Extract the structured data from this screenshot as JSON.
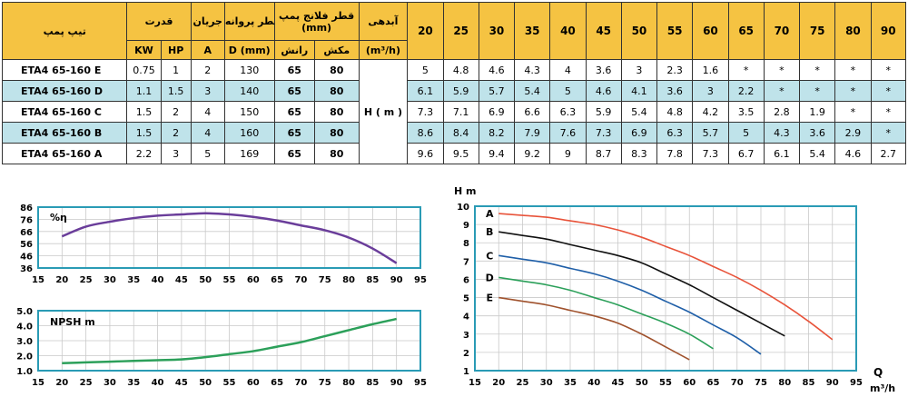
{
  "table": {
    "header": {
      "model": "تیپ پمپ",
      "power": "قدرت",
      "current": "جریان",
      "impeller": "قطر پروانه",
      "flange": "قطر فلانج پمپ (mm)",
      "flow": "آبدهی",
      "flow_unit": "(m³/h)",
      "kw": "KW",
      "hp": "HP",
      "amp": "A",
      "dmm": "D (mm)",
      "outlet": "رانش",
      "inlet": "مکش",
      "flows": [
        "20",
        "25",
        "30",
        "35",
        "40",
        "45",
        "50",
        "55",
        "60",
        "65",
        "70",
        "75",
        "80",
        "90"
      ]
    },
    "head_label": "H ( m )",
    "rows": [
      {
        "model": "ETA4 65-160 E",
        "kw": "0.75",
        "hp": "1",
        "a": "2",
        "d": "130",
        "out": "65",
        "in": "80",
        "h": [
          "5",
          "4.8",
          "4.6",
          "4.3",
          "4",
          "3.6",
          "3",
          "2.3",
          "1.6",
          "*",
          "*",
          "*",
          "*",
          "*"
        ]
      },
      {
        "model": "ETA4 65-160 D",
        "kw": "1.1",
        "hp": "1.5",
        "a": "3",
        "d": "140",
        "out": "65",
        "in": "80",
        "h": [
          "6.1",
          "5.9",
          "5.7",
          "5.4",
          "5",
          "4.6",
          "4.1",
          "3.6",
          "3",
          "2.2",
          "*",
          "*",
          "*",
          "*"
        ]
      },
      {
        "model": "ETA4 65-160 C",
        "kw": "1.5",
        "hp": "2",
        "a": "4",
        "d": "150",
        "out": "65",
        "in": "80",
        "h": [
          "7.3",
          "7.1",
          "6.9",
          "6.6",
          "6.3",
          "5.9",
          "5.4",
          "4.8",
          "4.2",
          "3.5",
          "2.8",
          "1.9",
          "*",
          "*"
        ]
      },
      {
        "model": "ETA4 65-160 B",
        "kw": "1.5",
        "hp": "2",
        "a": "4",
        "d": "160",
        "out": "65",
        "in": "80",
        "h": [
          "8.6",
          "8.4",
          "8.2",
          "7.9",
          "7.6",
          "7.3",
          "6.9",
          "6.3",
          "5.7",
          "5",
          "4.3",
          "3.6",
          "2.9",
          "*"
        ]
      },
      {
        "model": "ETA4 65-160 A",
        "kw": "2.2",
        "hp": "3",
        "a": "5",
        "d": "169",
        "out": "65",
        "in": "80",
        "h": [
          "9.6",
          "9.5",
          "9.4",
          "9.2",
          "9",
          "8.7",
          "8.3",
          "7.8",
          "7.3",
          "6.7",
          "6.1",
          "5.4",
          "4.6",
          "2.7"
        ]
      }
    ]
  },
  "chart_data": [
    {
      "type": "line",
      "ylabel": "%η",
      "xlim": [
        15,
        95
      ],
      "ylim": [
        36,
        86
      ],
      "yticks": [
        "86",
        "76",
        "66",
        "56",
        "46",
        "36"
      ],
      "xticks": [
        "15",
        "20",
        "25",
        "30",
        "35",
        "40",
        "45",
        "50",
        "55",
        "60",
        "65",
        "70",
        "75",
        "80",
        "85",
        "90",
        "95"
      ],
      "grid": true,
      "series": [
        {
          "color": "#6a3d9a",
          "x": [
            20,
            25,
            30,
            35,
            40,
            45,
            50,
            55,
            60,
            65,
            70,
            75,
            80,
            85,
            90
          ],
          "y": [
            62,
            70,
            74,
            77,
            79,
            80,
            81,
            80,
            78,
            75,
            71,
            67,
            61,
            52,
            40
          ]
        }
      ]
    },
    {
      "type": "line",
      "ylabel": "NPSH m",
      "xlim": [
        15,
        95
      ],
      "ylim": [
        1.0,
        5.0
      ],
      "yticks": [
        "5.0",
        "4.0",
        "3.0",
        "2.0",
        "1.0"
      ],
      "xticks": [
        "15",
        "20",
        "25",
        "30",
        "35",
        "40",
        "45",
        "50",
        "55",
        "60",
        "65",
        "70",
        "75",
        "80",
        "85",
        "90",
        "95"
      ],
      "grid": true,
      "series": [
        {
          "color": "#2ca05a",
          "x": [
            20,
            25,
            30,
            35,
            40,
            45,
            50,
            55,
            60,
            65,
            70,
            75,
            80,
            85,
            90
          ],
          "y": [
            1.5,
            1.55,
            1.6,
            1.65,
            1.7,
            1.75,
            1.9,
            2.1,
            2.3,
            2.6,
            2.9,
            3.3,
            3.7,
            4.1,
            4.45
          ]
        }
      ]
    },
    {
      "type": "line",
      "ylabel": "H m",
      "xlabel": "Q",
      "xunit": "m³/h",
      "xlim": [
        15,
        95
      ],
      "ylim": [
        1,
        10
      ],
      "yticks": [
        "10",
        "9",
        "8",
        "7",
        "6",
        "5",
        "4",
        "3",
        "2",
        "1"
      ],
      "xticks": [
        "15",
        "20",
        "25",
        "30",
        "35",
        "40",
        "45",
        "50",
        "55",
        "60",
        "65",
        "70",
        "75",
        "80",
        "85",
        "90",
        "95"
      ],
      "grid": true,
      "series": [
        {
          "name": "A",
          "color": "#e8533a",
          "x": [
            20,
            25,
            30,
            35,
            40,
            45,
            50,
            55,
            60,
            65,
            70,
            75,
            80,
            85,
            90
          ],
          "y": [
            9.6,
            9.5,
            9.4,
            9.2,
            9,
            8.7,
            8.3,
            7.8,
            7.3,
            6.7,
            6.1,
            5.4,
            4.6,
            3.7,
            2.7
          ]
        },
        {
          "name": "B",
          "color": "#111111",
          "x": [
            20,
            25,
            30,
            35,
            40,
            45,
            50,
            55,
            60,
            65,
            70,
            75,
            80
          ],
          "y": [
            8.6,
            8.4,
            8.2,
            7.9,
            7.6,
            7.3,
            6.9,
            6.3,
            5.7,
            5,
            4.3,
            3.6,
            2.9
          ]
        },
        {
          "name": "C",
          "color": "#1f5fa8",
          "x": [
            20,
            25,
            30,
            35,
            40,
            45,
            50,
            55,
            60,
            65,
            70,
            75
          ],
          "y": [
            7.3,
            7.1,
            6.9,
            6.6,
            6.3,
            5.9,
            5.4,
            4.8,
            4.2,
            3.5,
            2.8,
            1.9
          ]
        },
        {
          "name": "D",
          "color": "#2ca05a",
          "x": [
            20,
            25,
            30,
            35,
            40,
            45,
            50,
            55,
            60,
            65
          ],
          "y": [
            6.1,
            5.9,
            5.7,
            5.4,
            5,
            4.6,
            4.1,
            3.6,
            3,
            2.2
          ]
        },
        {
          "name": "E",
          "color": "#a0522d",
          "x": [
            20,
            25,
            30,
            35,
            40,
            45,
            50,
            55,
            60
          ],
          "y": [
            5,
            4.8,
            4.6,
            4.3,
            4,
            3.6,
            3,
            2.3,
            1.6
          ]
        }
      ]
    }
  ]
}
